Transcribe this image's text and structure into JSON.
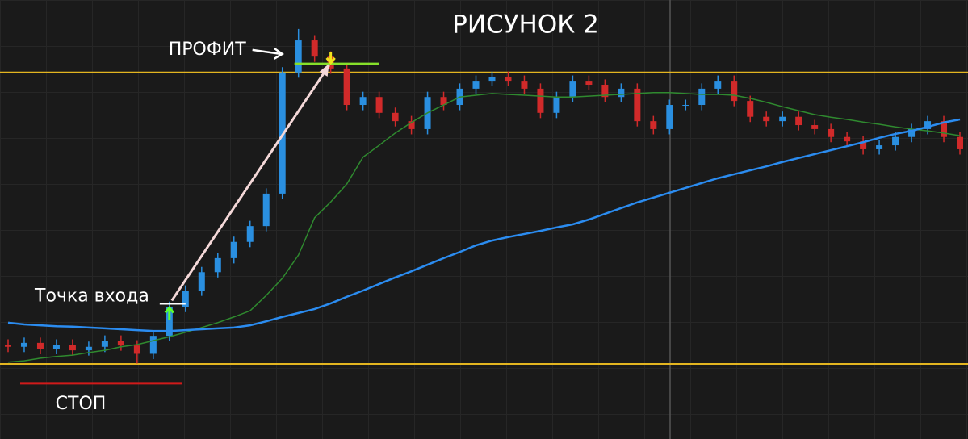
{
  "chart_data": {
    "type": "candlestick",
    "title": "РИСУНОК 2",
    "ylim": [
      0,
      100
    ],
    "up_color": "#2a8fe0",
    "down_color": "#d12a2a",
    "open": [
      21.5,
      21.0,
      21.9,
      20.5,
      21.5,
      20.2,
      21.0,
      22.4,
      21.3,
      19.4,
      23.5,
      30.1,
      33.8,
      38.0,
      41.2,
      44.9,
      48.5,
      55.9,
      83.5,
      90.8,
      87.1,
      84.4,
      76.1,
      77.9,
      74.3,
      72.4,
      70.6,
      77.9,
      76.1,
      79.8,
      81.6,
      82.5,
      81.6,
      79.8,
      74.3,
      77.9,
      81.6,
      80.7,
      77.9,
      79.8,
      72.4,
      70.6,
      76.1,
      76.1,
      79.8,
      81.6,
      77.0,
      73.4,
      72.4,
      73.4,
      71.5,
      70.6,
      68.8,
      67.8,
      66.0,
      66.9,
      68.8,
      70.6,
      72.4,
      68.8
    ],
    "high": [
      22.7,
      23.1,
      23.1,
      22.7,
      22.7,
      22.2,
      23.6,
      23.6,
      22.5,
      24.7,
      31.3,
      35.0,
      39.2,
      42.4,
      46.1,
      49.7,
      57.1,
      84.7,
      93.4,
      92.0,
      88.3,
      85.6,
      79.1,
      79.1,
      75.5,
      73.6,
      79.1,
      79.1,
      81.0,
      82.8,
      83.7,
      83.7,
      82.8,
      81.0,
      79.1,
      82.8,
      82.8,
      81.9,
      81.0,
      81.0,
      73.6,
      77.3,
      77.3,
      81.0,
      82.8,
      82.8,
      78.2,
      74.6,
      74.6,
      74.6,
      72.7,
      71.8,
      70.0,
      69.0,
      68.1,
      70.0,
      71.8,
      73.6,
      73.6,
      70.0
    ],
    "low": [
      19.8,
      19.8,
      19.3,
      19.3,
      19.0,
      19.0,
      19.8,
      20.1,
      17.2,
      18.2,
      22.3,
      28.9,
      32.6,
      36.8,
      40.0,
      43.7,
      47.3,
      54.7,
      82.3,
      85.9,
      83.2,
      74.9,
      74.9,
      73.1,
      71.2,
      69.4,
      69.4,
      74.9,
      74.9,
      78.6,
      80.4,
      80.4,
      78.6,
      73.1,
      73.1,
      76.7,
      79.5,
      76.7,
      76.7,
      71.2,
      69.4,
      69.4,
      74.9,
      74.9,
      78.6,
      75.8,
      72.2,
      71.2,
      71.2,
      70.3,
      69.4,
      67.6,
      66.6,
      64.8,
      64.8,
      65.7,
      67.6,
      69.4,
      67.6,
      64.8
    ],
    "close": [
      21.0,
      21.9,
      20.5,
      21.5,
      20.2,
      21.0,
      22.4,
      21.3,
      19.4,
      23.5,
      30.1,
      33.8,
      38.0,
      41.2,
      44.9,
      48.5,
      55.9,
      83.5,
      90.8,
      87.1,
      84.4,
      76.1,
      77.9,
      74.3,
      72.4,
      70.6,
      77.9,
      76.1,
      79.8,
      81.6,
      82.5,
      81.6,
      79.8,
      74.3,
      77.9,
      81.6,
      80.7,
      77.9,
      79.8,
      72.4,
      70.6,
      76.1,
      76.1,
      79.8,
      81.6,
      77.0,
      73.4,
      72.4,
      73.4,
      71.5,
      70.6,
      68.8,
      67.8,
      66.0,
      66.9,
      68.8,
      70.6,
      72.4,
      68.8,
      66.0
    ],
    "series": [
      {
        "color": "#2f8a2f",
        "values": [
          17.5,
          17.8,
          18.4,
          18.8,
          19.1,
          19.7,
          20.2,
          21.0,
          21.5,
          22.4,
          23.3,
          24.3,
          25.4,
          26.5,
          27.8,
          29.2,
          32.7,
          36.6,
          41.9,
          50.4,
          54.0,
          58.1,
          64.2,
          66.9,
          69.7,
          72.1,
          74.3,
          76.1,
          77.9,
          78.3,
          78.7,
          78.5,
          78.3,
          78.1,
          77.9,
          77.9,
          78.1,
          78.3,
          78.5,
          78.7,
          78.9,
          78.9,
          78.7,
          78.5,
          78.5,
          78.3,
          77.6,
          76.7,
          75.7,
          74.8,
          73.9,
          73.3,
          72.8,
          72.2,
          71.7,
          71.1,
          70.6,
          70.2,
          69.7,
          69.1
        ]
      },
      {
        "color": "#2b8cf0",
        "values": [
          26.5,
          26.1,
          25.9,
          25.7,
          25.6,
          25.4,
          25.2,
          25.0,
          24.8,
          24.6,
          24.6,
          24.8,
          25.0,
          25.2,
          25.4,
          25.9,
          26.8,
          27.8,
          28.7,
          29.6,
          30.9,
          32.4,
          33.8,
          35.3,
          36.8,
          38.2,
          39.7,
          41.2,
          42.6,
          44.1,
          45.2,
          46.0,
          46.7,
          47.4,
          48.2,
          48.9,
          50.0,
          51.3,
          52.6,
          53.9,
          55.0,
          56.1,
          57.2,
          58.3,
          59.4,
          60.3,
          61.2,
          62.1,
          63.1,
          64.0,
          64.9,
          65.8,
          66.7,
          67.6,
          68.6,
          69.5,
          70.2,
          71.1,
          72.1,
          72.8
        ]
      }
    ],
    "levels": [
      83.5,
      17.1
    ],
    "level_color": "#e3b520",
    "annotations": [
      {
        "text": "Точка входа",
        "index": 10,
        "value": 30.8
      },
      {
        "text": "ПРОФИТ",
        "index": 20,
        "value": 84.4
      },
      {
        "text": "СТОП",
        "value": 12.7,
        "color": "#d11a1a"
      }
    ]
  }
}
